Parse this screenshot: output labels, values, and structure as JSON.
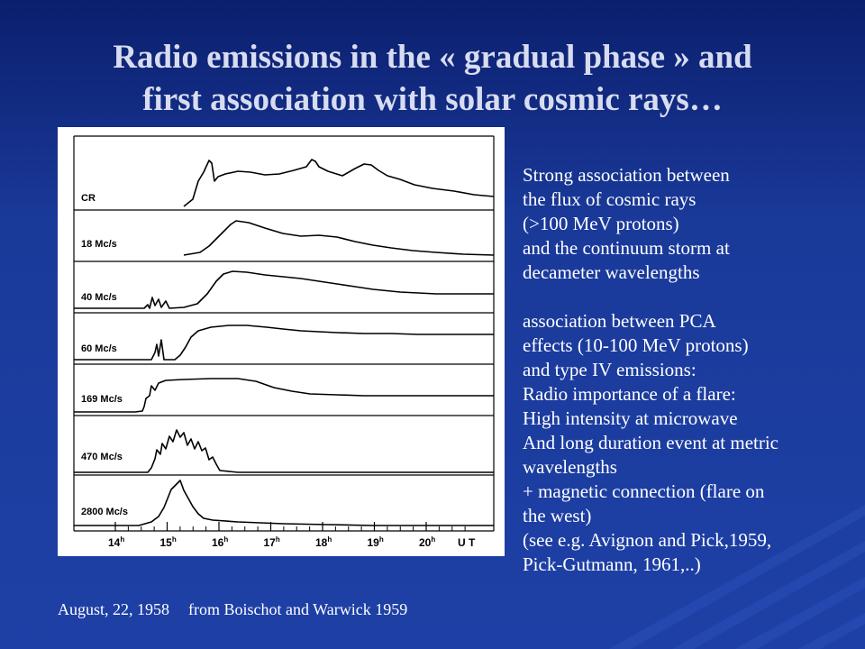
{
  "slide": {
    "title_lines": [
      "Radio emissions in the « gradual phase » and",
      "first association with solar cosmic rays…"
    ],
    "colors": {
      "background": "#1c3c9c",
      "title": "#d8dcf0",
      "text": "#ffffff"
    }
  },
  "figure": {
    "rows": [
      {
        "label": "CR"
      },
      {
        "label": "18 Mc/s"
      },
      {
        "label": "40 Mc/s"
      },
      {
        "label": "60 Mc/s"
      },
      {
        "label": "169 Mc/s"
      },
      {
        "label": "470 Mc/s"
      },
      {
        "label": "2800 Mc/s"
      }
    ],
    "time_axis": {
      "ticks": [
        {
          "hour": "14",
          "sup": "h"
        },
        {
          "hour": "15",
          "sup": "h"
        },
        {
          "hour": "16",
          "sup": "h"
        },
        {
          "hour": "17",
          "sup": "h"
        },
        {
          "hour": "18",
          "sup": "h"
        },
        {
          "hour": "19",
          "sup": "h"
        },
        {
          "hour": "20",
          "sup": "h"
        }
      ],
      "unit": "U T"
    }
  },
  "text_block": {
    "group1": [
      "Strong association between",
      "the flux of cosmic rays",
      "(>100 MeV protons)",
      "and the continuum storm at",
      "decameter wavelengths"
    ],
    "group2": [
      "association between PCA",
      "effects (10-100 MeV protons)",
      "and type IV emissions:",
      "Radio importance of  a flare:",
      "High intensity at microwave",
      "And long duration event at metric",
      "wavelengths",
      "+ magnetic connection (flare on",
      "the west)",
      "(see e.g. Avignon and Pick,1959,",
      "Pick-Gutmann, 1961,..)"
    ]
  },
  "caption": {
    "date": "August, 22, 1958",
    "source": "from Boischot and Warwick 1959"
  }
}
